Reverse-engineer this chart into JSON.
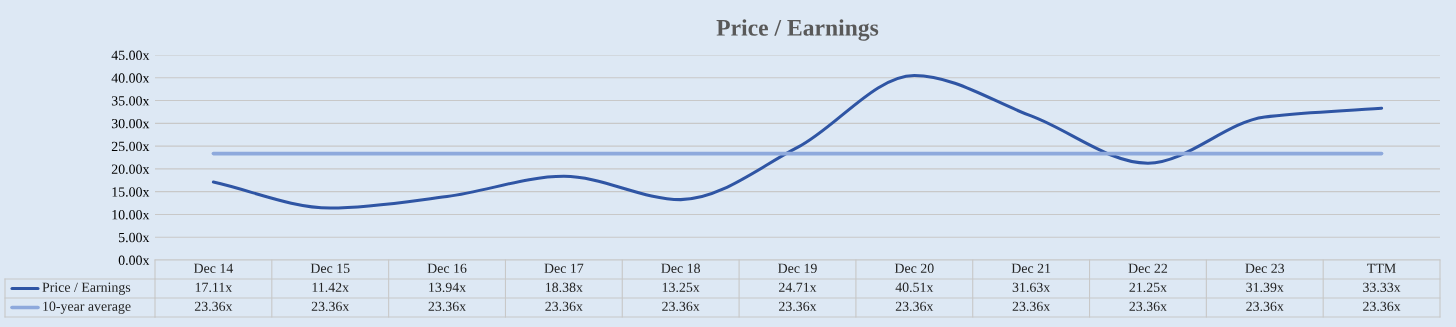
{
  "chart_data": {
    "type": "line",
    "title": "Price / Earnings",
    "categories": [
      "Dec 14",
      "Dec 15",
      "Dec 16",
      "Dec 17",
      "Dec 18",
      "Dec 19",
      "Dec 20",
      "Dec 21",
      "Dec 22",
      "Dec 23",
      "TTM"
    ],
    "series": [
      {
        "name": "Price / Earnings",
        "color": "#2f55a4",
        "values": [
          17.11,
          11.42,
          13.94,
          18.38,
          13.25,
          24.71,
          40.51,
          31.63,
          21.25,
          31.39,
          33.33
        ],
        "value_labels": [
          "17.11x",
          "11.42x",
          "13.94x",
          "18.38x",
          "13.25x",
          "24.71x",
          "40.51x",
          "31.63x",
          "21.25x",
          "31.39x",
          "33.33x"
        ]
      },
      {
        "name": "10-year average",
        "color": "#8ea9dc",
        "values": [
          23.36,
          23.36,
          23.36,
          23.36,
          23.36,
          23.36,
          23.36,
          23.36,
          23.36,
          23.36,
          23.36
        ],
        "value_labels": [
          "23.36x",
          "23.36x",
          "23.36x",
          "23.36x",
          "23.36x",
          "23.36x",
          "23.36x",
          "23.36x",
          "23.36x",
          "23.36x",
          "23.36x"
        ]
      }
    ],
    "ylim": [
      0,
      45
    ],
    "yticks": [
      {
        "value": 0,
        "label": "0.00x"
      },
      {
        "value": 5,
        "label": "5.00x"
      },
      {
        "value": 10,
        "label": "10.00x"
      },
      {
        "value": 15,
        "label": "15.00x"
      },
      {
        "value": 20,
        "label": "20.00x"
      },
      {
        "value": 25,
        "label": "25.00x"
      },
      {
        "value": 30,
        "label": "30.00x"
      },
      {
        "value": 35,
        "label": "35.00x"
      },
      {
        "value": 40,
        "label": "40.00x"
      },
      {
        "value": 45,
        "label": "45.00x"
      }
    ],
    "grid": "y",
    "marker": "none",
    "line_style": "solid",
    "legend": "bottom"
  }
}
